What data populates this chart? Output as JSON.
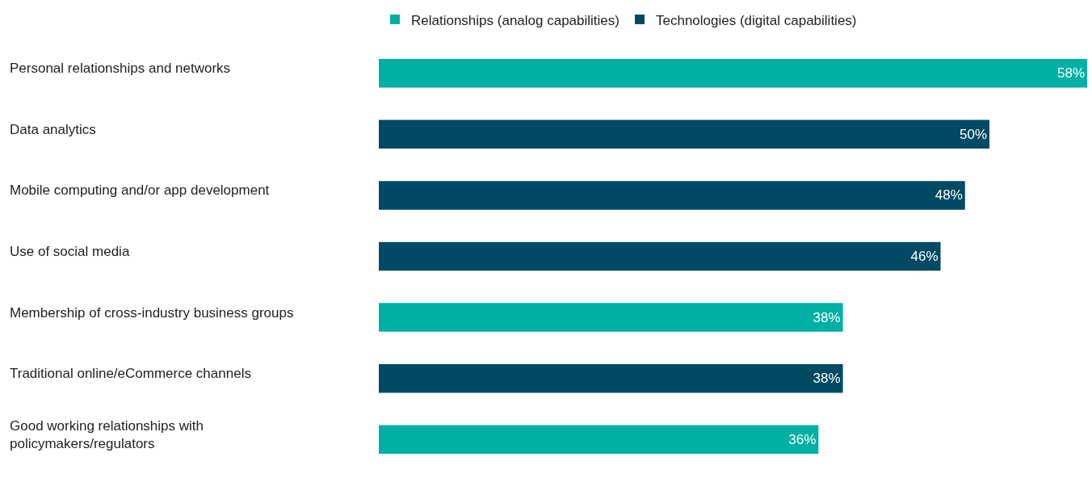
{
  "chart_data": {
    "type": "bar",
    "orientation": "horizontal",
    "legend": "top",
    "tick_labels": false,
    "categories": [
      "Personal relationships and networks",
      "Data analytics",
      "Mobile computing and/or app development",
      "Use of social media",
      "Membership of cross-industry business groups",
      "Traditional online/eCommerce channels",
      "Good working relationships with\npolicymakers/regulators"
    ],
    "series": [
      {
        "name": "Relationships (analog capabilities)",
        "color": "#00b0a5",
        "values": [
          58,
          null,
          null,
          null,
          38,
          null,
          36
        ],
        "value_labels": [
          "58%",
          null,
          null,
          null,
          "38%",
          null,
          "36%"
        ]
      },
      {
        "name": "Technologies (digital capabilities)",
        "color": "#004a63",
        "values": [
          null,
          50,
          48,
          46,
          null,
          38,
          null
        ],
        "value_labels": [
          null,
          "50%",
          "48%",
          "46%",
          null,
          "38%",
          null
        ]
      }
    ]
  }
}
